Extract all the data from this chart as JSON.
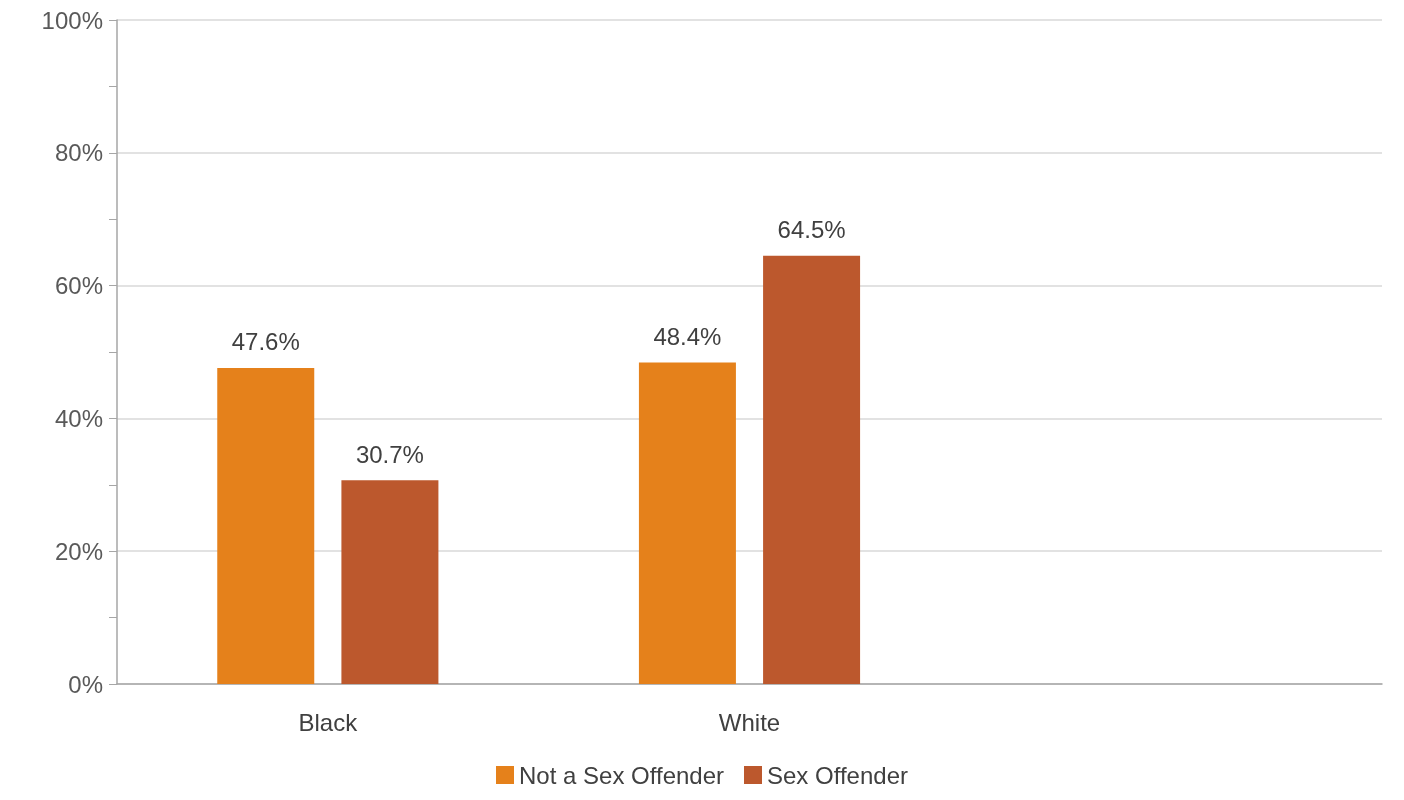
{
  "chart_data": {
    "type": "bar",
    "categories": [
      "Black",
      "White",
      null
    ],
    "series": [
      {
        "name": "Not a Sex Offender",
        "color": "#e5811b",
        "values": [
          47.6,
          48.4,
          null
        ],
        "value_labels": [
          "47.6%",
          "48.4%",
          null
        ]
      },
      {
        "name": "Sex Offender",
        "color": "#bc582d",
        "values": [
          30.7,
          64.5,
          null
        ],
        "value_labels": [
          "30.7%",
          "64.5%",
          null
        ]
      }
    ],
    "ylim": [
      0,
      100
    ],
    "yticks": [
      {
        "value": 0,
        "label": "0%"
      },
      {
        "value": 10,
        "label": null
      },
      {
        "value": 20,
        "label": "20%"
      },
      {
        "value": 30,
        "label": null
      },
      {
        "value": 40,
        "label": "40%"
      },
      {
        "value": 50,
        "label": null
      },
      {
        "value": 60,
        "label": "60%"
      },
      {
        "value": 70,
        "label": null
      },
      {
        "value": 80,
        "label": "80%"
      },
      {
        "value": 90,
        "label": null
      },
      {
        "value": 100,
        "label": "100%"
      }
    ],
    "grid": "y",
    "legend": "bottom"
  }
}
